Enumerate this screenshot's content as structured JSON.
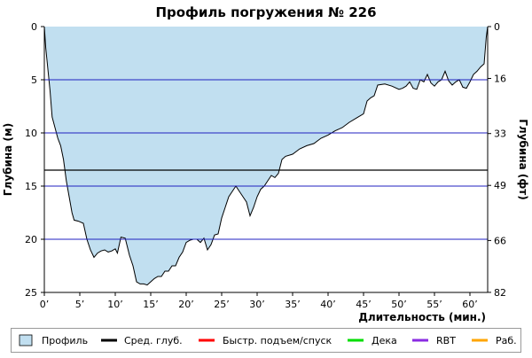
{
  "chart_data": {
    "type": "area",
    "title": "Профиль погружения № 226",
    "xlabel": "Длительность (мин.)",
    "ylabel_left": "Глубина (м)",
    "ylabel_right": "Глубина (фт)",
    "x_unit": "min",
    "y_unit": "m",
    "xlim": [
      0,
      62.5
    ],
    "ylim": [
      0,
      25
    ],
    "y_inverted": true,
    "x_ticks": [
      0,
      5,
      10,
      15,
      20,
      25,
      30,
      35,
      40,
      45,
      50,
      55,
      60
    ],
    "x_tick_labels": [
      "0’",
      "5’",
      "10’",
      "15’",
      "20’",
      "25’",
      "30’",
      "35’",
      "40’",
      "45’",
      "50’",
      "55’",
      "60’"
    ],
    "y_ticks_left": [
      0,
      5,
      10,
      15,
      20,
      25
    ],
    "y_tick_labels_left": [
      "0",
      "5",
      "10",
      "15",
      "20",
      "25"
    ],
    "y_ticks_right_ft": [
      0,
      16,
      33,
      49,
      66,
      82
    ],
    "y_tick_labels_right": [
      "0",
      "16",
      "33",
      "49",
      "66",
      "82"
    ],
    "grid": "horizontal",
    "average_depth": 13.5,
    "colors": {
      "profile_fill": "#c1dff0",
      "profile_line": "#000000",
      "grid": "#2020c0",
      "avg_line": "#000000",
      "ascent": "#ff0000",
      "deco": "#00dd00",
      "rbt": "#8a2be2",
      "work": "#ffa500"
    },
    "series": [
      {
        "name": "Профиль",
        "points": [
          [
            0,
            0
          ],
          [
            0.2,
            2
          ],
          [
            0.5,
            4
          ],
          [
            0.8,
            6
          ],
          [
            1.1,
            8.5
          ],
          [
            1.5,
            9.5
          ],
          [
            1.9,
            10.5
          ],
          [
            2.3,
            11.2
          ],
          [
            2.7,
            12.5
          ],
          [
            3.1,
            14.5
          ],
          [
            3.5,
            16
          ],
          [
            3.9,
            17.5
          ],
          [
            4.2,
            18.2
          ],
          [
            4.8,
            18.3
          ],
          [
            5.5,
            18.5
          ],
          [
            6,
            20
          ],
          [
            6.5,
            21
          ],
          [
            7,
            21.7
          ],
          [
            7.5,
            21.3
          ],
          [
            8,
            21.1
          ],
          [
            8.5,
            21
          ],
          [
            9,
            21.2
          ],
          [
            9.5,
            21.1
          ],
          [
            10,
            20.9
          ],
          [
            10.3,
            21.3
          ],
          [
            10.8,
            19.8
          ],
          [
            11.4,
            19.9
          ],
          [
            12,
            21.5
          ],
          [
            12.5,
            22.5
          ],
          [
            13,
            24
          ],
          [
            13.5,
            24.2
          ],
          [
            14,
            24.2
          ],
          [
            14.5,
            24.3
          ],
          [
            15,
            24
          ],
          [
            15.5,
            23.7
          ],
          [
            16,
            23.5
          ],
          [
            16.5,
            23.5
          ],
          [
            17,
            23
          ],
          [
            17.5,
            23
          ],
          [
            18,
            22.5
          ],
          [
            18.5,
            22.5
          ],
          [
            19,
            21.7
          ],
          [
            19.5,
            21.2
          ],
          [
            20,
            20.3
          ],
          [
            20.5,
            20.1
          ],
          [
            21,
            20
          ],
          [
            21.5,
            20
          ],
          [
            22,
            20.3
          ],
          [
            22.5,
            19.9
          ],
          [
            23,
            21
          ],
          [
            23.5,
            20.5
          ],
          [
            24,
            19.6
          ],
          [
            24.5,
            19.5
          ],
          [
            25,
            18
          ],
          [
            25.5,
            17
          ],
          [
            26,
            16
          ],
          [
            26.5,
            15.5
          ],
          [
            27,
            15
          ],
          [
            27.5,
            15.5
          ],
          [
            28,
            16
          ],
          [
            28.5,
            16.5
          ],
          [
            29,
            17.8
          ],
          [
            29.5,
            17
          ],
          [
            30,
            16
          ],
          [
            30.5,
            15.3
          ],
          [
            31,
            15
          ],
          [
            31.5,
            14.5
          ],
          [
            32,
            14
          ],
          [
            32.5,
            14.2
          ],
          [
            33,
            13.8
          ],
          [
            33.5,
            12.5
          ],
          [
            34,
            12.2
          ],
          [
            35,
            12
          ],
          [
            36,
            11.5
          ],
          [
            37,
            11.2
          ],
          [
            38,
            11
          ],
          [
            39,
            10.5
          ],
          [
            40,
            10.2
          ],
          [
            41,
            9.8
          ],
          [
            42,
            9.5
          ],
          [
            43,
            9
          ],
          [
            44,
            8.6
          ],
          [
            45,
            8.2
          ],
          [
            45.5,
            7
          ],
          [
            46,
            6.7
          ],
          [
            46.5,
            6.5
          ],
          [
            47,
            5.5
          ],
          [
            48,
            5.4
          ],
          [
            49,
            5.6
          ],
          [
            50,
            5.9
          ],
          [
            50.5,
            5.8
          ],
          [
            51,
            5.6
          ],
          [
            51.5,
            5.2
          ],
          [
            52,
            5.8
          ],
          [
            52.5,
            5.9
          ],
          [
            53,
            5
          ],
          [
            53.5,
            5.2
          ],
          [
            54,
            4.5
          ],
          [
            54.5,
            5.3
          ],
          [
            55,
            5.6
          ],
          [
            55.5,
            5.2
          ],
          [
            56,
            5
          ],
          [
            56.5,
            4.2
          ],
          [
            57,
            5.1
          ],
          [
            57.5,
            5.5
          ],
          [
            58,
            5.2
          ],
          [
            58.5,
            5
          ],
          [
            59,
            5.7
          ],
          [
            59.5,
            5.8
          ],
          [
            60,
            5.2
          ],
          [
            60.5,
            4.5
          ],
          [
            61,
            4.2
          ],
          [
            61.5,
            3.8
          ],
          [
            62,
            3.5
          ],
          [
            62.3,
            1
          ],
          [
            62.5,
            0
          ]
        ]
      }
    ],
    "legend": [
      {
        "name": "Профиль",
        "style": "box",
        "color": "#c1dff0"
      },
      {
        "name": "Сред. глуб.",
        "style": "line",
        "color": "#000000"
      },
      {
        "name": "Быстр. подъем/спуск",
        "style": "line",
        "color": "#ff0000"
      },
      {
        "name": "Дека",
        "style": "line",
        "color": "#00dd00"
      },
      {
        "name": "RBT",
        "style": "line",
        "color": "#8a2be2"
      },
      {
        "name": "Раб.",
        "style": "line",
        "color": "#ffa500"
      }
    ]
  }
}
